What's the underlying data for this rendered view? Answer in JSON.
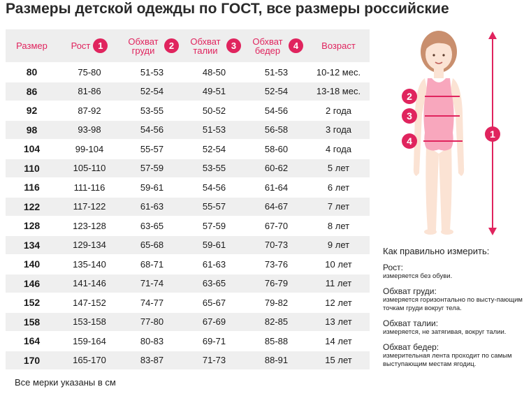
{
  "title": "Размеры детской одежды по ГОСТ, все размеры российские",
  "table": {
    "headers": [
      {
        "label": "Размер",
        "num": ""
      },
      {
        "label": "Рост",
        "num": "1"
      },
      {
        "label": "Обхват груди",
        "num": "2"
      },
      {
        "label": "Обхват талии",
        "num": "3"
      },
      {
        "label": "Обхват бедер",
        "num": "4"
      },
      {
        "label": "Возраст",
        "num": ""
      }
    ],
    "rows": [
      [
        "80",
        "75-80",
        "51-53",
        "48-50",
        "51-53",
        "10-12 мес."
      ],
      [
        "86",
        "81-86",
        "52-54",
        "49-51",
        "52-54",
        "13-18 мес."
      ],
      [
        "92",
        "87-92",
        "53-55",
        "50-52",
        "54-56",
        "2 года"
      ],
      [
        "98",
        "93-98",
        "54-56",
        "51-53",
        "56-58",
        "3 года"
      ],
      [
        "104",
        "99-104",
        "55-57",
        "52-54",
        "58-60",
        "4 года"
      ],
      [
        "110",
        "105-110",
        "57-59",
        "53-55",
        "60-62",
        "5 лет"
      ],
      [
        "116",
        "111-116",
        "59-61",
        "54-56",
        "61-64",
        "6 лет"
      ],
      [
        "122",
        "117-122",
        "61-63",
        "55-57",
        "64-67",
        "7 лет"
      ],
      [
        "128",
        "123-128",
        "63-65",
        "57-59",
        "67-70",
        "8 лет"
      ],
      [
        "134",
        "129-134",
        "65-68",
        "59-61",
        "70-73",
        "9 лет"
      ],
      [
        "140",
        "135-140",
        "68-71",
        "61-63",
        "73-76",
        "10 лет"
      ],
      [
        "146",
        "141-146",
        "71-74",
        "63-65",
        "76-79",
        "11 лет"
      ],
      [
        "152",
        "147-152",
        "74-77",
        "65-67",
        "79-82",
        "12 лет"
      ],
      [
        "158",
        "153-158",
        "77-80",
        "67-69",
        "82-85",
        "13 лет"
      ],
      [
        "164",
        "159-164",
        "80-83",
        "69-71",
        "85-88",
        "14 лет"
      ],
      [
        "170",
        "165-170",
        "83-87",
        "71-73",
        "88-91",
        "15 лет"
      ]
    ]
  },
  "footnote": "Все мерки указаны в см",
  "figure": {
    "markers": [
      "1",
      "2",
      "3",
      "4"
    ],
    "accent_color": "#e0245e",
    "body_color": "#f8a7bd",
    "hair_color": "#c98f6e",
    "skin_color": "#fbe3d4"
  },
  "guide": {
    "title": "Как правильно измерить:",
    "items": [
      {
        "name": "Рост:",
        "desc": "измеряется без обуви."
      },
      {
        "name": "Обхват груди:",
        "desc": "измеряется горизонтально по высту-пающим точкам груди вокруг тела."
      },
      {
        "name": "Обхват талии:",
        "desc": "измеряется, не затягивая, вокруг талии."
      },
      {
        "name": "Обхват бедер:",
        "desc": "измерительная лента проходит по самым выступающим местам ягодиц."
      }
    ]
  }
}
